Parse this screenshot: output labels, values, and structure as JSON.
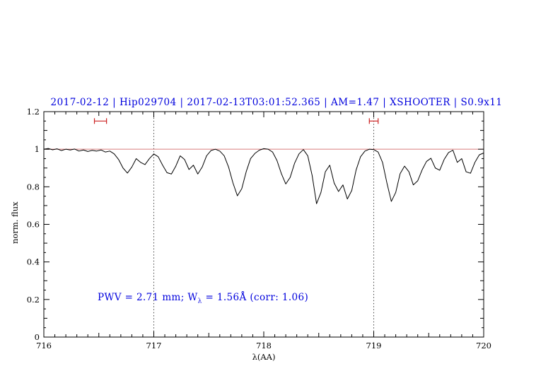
{
  "chart_data": {
    "type": "line",
    "title": "2017-02-12 | Hip029704 | 2017-02-13T03:01:52.365 | AM=1.47 | XSHOOTER | S0.9x11",
    "xlabel": "λ(AA)",
    "ylabel": "norm. flux",
    "xlim": [
      716,
      720
    ],
    "ylim": [
      0,
      1.2
    ],
    "xticks": [
      716,
      717,
      718,
      719,
      720
    ],
    "yticks": [
      0,
      0.2,
      0.4,
      0.6,
      0.8,
      1,
      1.2
    ],
    "grid": false,
    "legend": "none",
    "reference_line_y": 1.0,
    "dotted_vlines": [
      717,
      719
    ],
    "range_markers": [
      {
        "x1": 716.46,
        "x2": 716.57,
        "y": 1.15
      },
      {
        "x1": 718.96,
        "x2": 719.04,
        "y": 1.15
      }
    ],
    "annotation": {
      "prefix": "PWV = 2.71 mm; W",
      "sub": "λ",
      "suffix": " = 1.56Å (corr: 1.06)",
      "x": 716.5,
      "y": 0.2
    },
    "colors": {
      "title": "#0000dd",
      "annotation": "#0000dd",
      "spectrum": "#000000",
      "reference_line": "#d97b7b",
      "range_marker": "#cc2222",
      "vline": "#444444",
      "axis": "#000000"
    },
    "series": [
      {
        "name": "normalized spectrum",
        "points": [
          [
            716.0,
            1.0
          ],
          [
            716.04,
            1.004
          ],
          [
            716.08,
            0.997
          ],
          [
            716.12,
            1.002
          ],
          [
            716.16,
            0.993
          ],
          [
            716.2,
            1.0
          ],
          [
            716.24,
            0.996
          ],
          [
            716.28,
            1.001
          ],
          [
            716.32,
            0.99
          ],
          [
            716.36,
            0.996
          ],
          [
            716.4,
            0.988
          ],
          [
            716.44,
            0.994
          ],
          [
            716.48,
            0.99
          ],
          [
            716.52,
            0.996
          ],
          [
            716.56,
            0.985
          ],
          [
            716.6,
            0.99
          ],
          [
            716.64,
            0.975
          ],
          [
            716.68,
            0.945
          ],
          [
            716.72,
            0.9
          ],
          [
            716.76,
            0.873
          ],
          [
            716.8,
            0.905
          ],
          [
            716.84,
            0.95
          ],
          [
            716.88,
            0.93
          ],
          [
            716.92,
            0.918
          ],
          [
            716.96,
            0.95
          ],
          [
            717.0,
            0.975
          ],
          [
            717.04,
            0.96
          ],
          [
            717.08,
            0.915
          ],
          [
            717.12,
            0.875
          ],
          [
            717.16,
            0.868
          ],
          [
            717.2,
            0.91
          ],
          [
            717.24,
            0.965
          ],
          [
            717.28,
            0.945
          ],
          [
            717.32,
            0.892
          ],
          [
            717.36,
            0.915
          ],
          [
            717.4,
            0.868
          ],
          [
            717.44,
            0.905
          ],
          [
            717.48,
            0.965
          ],
          [
            717.52,
            0.993
          ],
          [
            717.56,
            1.0
          ],
          [
            717.6,
            0.99
          ],
          [
            717.64,
            0.965
          ],
          [
            717.68,
            0.905
          ],
          [
            717.72,
            0.82
          ],
          [
            717.76,
            0.752
          ],
          [
            717.8,
            0.79
          ],
          [
            717.84,
            0.88
          ],
          [
            717.88,
            0.95
          ],
          [
            717.92,
            0.978
          ],
          [
            717.96,
            0.995
          ],
          [
            718.0,
            1.003
          ],
          [
            718.04,
            1.0
          ],
          [
            718.08,
            0.985
          ],
          [
            718.12,
            0.94
          ],
          [
            718.16,
            0.87
          ],
          [
            718.2,
            0.815
          ],
          [
            718.24,
            0.85
          ],
          [
            718.28,
            0.925
          ],
          [
            718.32,
            0.975
          ],
          [
            718.36,
            0.998
          ],
          [
            718.4,
            0.965
          ],
          [
            718.44,
            0.86
          ],
          [
            718.48,
            0.71
          ],
          [
            718.52,
            0.77
          ],
          [
            718.56,
            0.88
          ],
          [
            718.6,
            0.915
          ],
          [
            718.64,
            0.82
          ],
          [
            718.68,
            0.775
          ],
          [
            718.72,
            0.81
          ],
          [
            718.76,
            0.735
          ],
          [
            718.8,
            0.78
          ],
          [
            718.84,
            0.89
          ],
          [
            718.88,
            0.96
          ],
          [
            718.92,
            0.99
          ],
          [
            718.96,
            1.0
          ],
          [
            719.0,
            0.998
          ],
          [
            719.04,
            0.985
          ],
          [
            719.08,
            0.93
          ],
          [
            719.12,
            0.82
          ],
          [
            719.16,
            0.722
          ],
          [
            719.2,
            0.77
          ],
          [
            719.24,
            0.87
          ],
          [
            719.28,
            0.91
          ],
          [
            719.32,
            0.88
          ],
          [
            719.36,
            0.81
          ],
          [
            719.4,
            0.832
          ],
          [
            719.44,
            0.89
          ],
          [
            719.48,
            0.935
          ],
          [
            719.52,
            0.952
          ],
          [
            719.56,
            0.9
          ],
          [
            719.6,
            0.888
          ],
          [
            719.64,
            0.945
          ],
          [
            719.68,
            0.982
          ],
          [
            719.72,
            0.995
          ],
          [
            719.76,
            0.93
          ],
          [
            719.8,
            0.95
          ],
          [
            719.84,
            0.88
          ],
          [
            719.88,
            0.872
          ],
          [
            719.92,
            0.93
          ],
          [
            719.96,
            0.97
          ],
          [
            720.0,
            0.98
          ]
        ]
      }
    ]
  }
}
